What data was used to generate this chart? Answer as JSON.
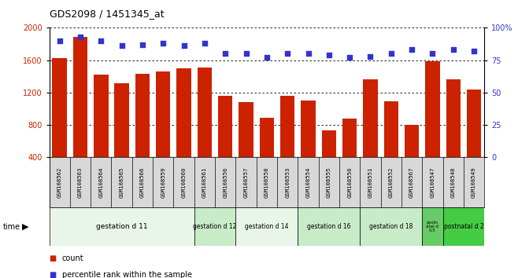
{
  "title": "GDS2098 / 1451345_at",
  "samples": [
    "GSM108562",
    "GSM108563",
    "GSM108564",
    "GSM108565",
    "GSM108566",
    "GSM108559",
    "GSM108560",
    "GSM108561",
    "GSM108556",
    "GSM108557",
    "GSM108558",
    "GSM108553",
    "GSM108554",
    "GSM108555",
    "GSM108550",
    "GSM108551",
    "GSM108552",
    "GSM108567",
    "GSM108547",
    "GSM108548",
    "GSM108549"
  ],
  "counts": [
    1625,
    1890,
    1420,
    1310,
    1430,
    1460,
    1500,
    1505,
    1155,
    1080,
    890,
    1160,
    1100,
    730,
    880,
    1360,
    1095,
    800,
    1590,
    1360,
    1240
  ],
  "percentiles": [
    90,
    93,
    90,
    86,
    87,
    88,
    86,
    88,
    80,
    80,
    77,
    80,
    80,
    79,
    77,
    78,
    80,
    83,
    80,
    83,
    82
  ],
  "groups": [
    {
      "label": "gestation d 11",
      "start": 0,
      "end": 7,
      "color": "#e8f5e8"
    },
    {
      "label": "gestation d 12",
      "start": 7,
      "end": 9,
      "color": "#c8ebc8"
    },
    {
      "label": "gestation d 14",
      "start": 9,
      "end": 12,
      "color": "#e8f5e8"
    },
    {
      "label": "gestation d 16",
      "start": 12,
      "end": 15,
      "color": "#c8ebc8"
    },
    {
      "label": "gestation d 18",
      "start": 15,
      "end": 18,
      "color": "#c8ebc8"
    },
    {
      "label": "postn\natal d\n0.5",
      "start": 18,
      "end": 19,
      "color": "#66cc66"
    },
    {
      "label": "postnatal d 2",
      "start": 19,
      "end": 21,
      "color": "#44cc44"
    }
  ],
  "ylim_left": [
    400,
    2000
  ],
  "ylim_right": [
    0,
    100
  ],
  "yticks_left": [
    400,
    800,
    1200,
    1600,
    2000
  ],
  "yticks_right": [
    0,
    25,
    50,
    75,
    100
  ],
  "bar_color": "#cc2200",
  "dot_color": "#3333cc",
  "plot_bg": "#ffffff",
  "label_bg": "#d8d8d8",
  "time_label": "time",
  "legend_count": "count",
  "legend_pct": "percentile rank within the sample"
}
